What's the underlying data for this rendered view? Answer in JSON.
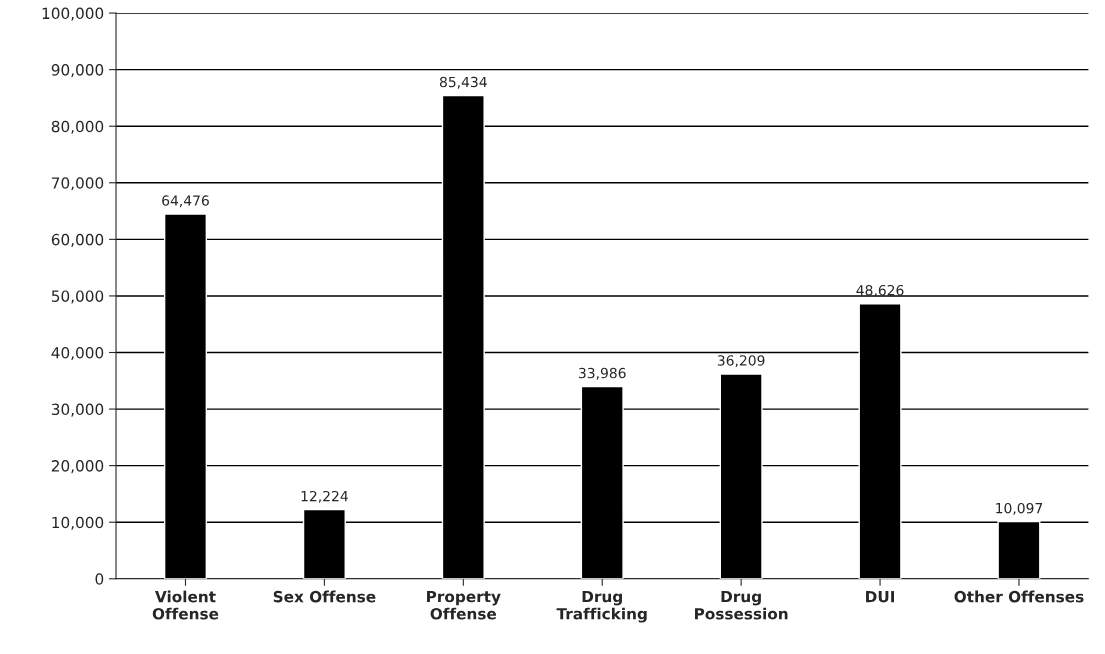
{
  "chart_data": {
    "type": "bar",
    "categories": [
      "Violent\nOffense",
      "Sex Offense",
      "Property\nOffense",
      "Drug\nTrafficking",
      "Drug\nPossession",
      "DUI",
      "Other Offenses"
    ],
    "values": [
      64476,
      12224,
      85434,
      33986,
      36209,
      48626,
      10097
    ],
    "value_labels": [
      "64,476",
      "12,224",
      "85,434",
      "33,986",
      "36,209",
      "48,626",
      "10,097"
    ],
    "color": "#000000",
    "ylim": [
      0,
      100000
    ],
    "yticks": [
      {
        "value": 0,
        "label": "0"
      },
      {
        "value": 10000,
        "label": "10,000"
      },
      {
        "value": 20000,
        "label": "20,000"
      },
      {
        "value": 30000,
        "label": "30,000"
      },
      {
        "value": 40000,
        "label": "40,000"
      },
      {
        "value": 50000,
        "label": "50,000"
      },
      {
        "value": 60000,
        "label": "60,000"
      },
      {
        "value": 70000,
        "label": "70,000"
      },
      {
        "value": 80000,
        "label": "80,000"
      },
      {
        "value": 90000,
        "label": "90,000"
      },
      {
        "value": 100000,
        "label": "100,000"
      }
    ],
    "grid": "y"
  }
}
